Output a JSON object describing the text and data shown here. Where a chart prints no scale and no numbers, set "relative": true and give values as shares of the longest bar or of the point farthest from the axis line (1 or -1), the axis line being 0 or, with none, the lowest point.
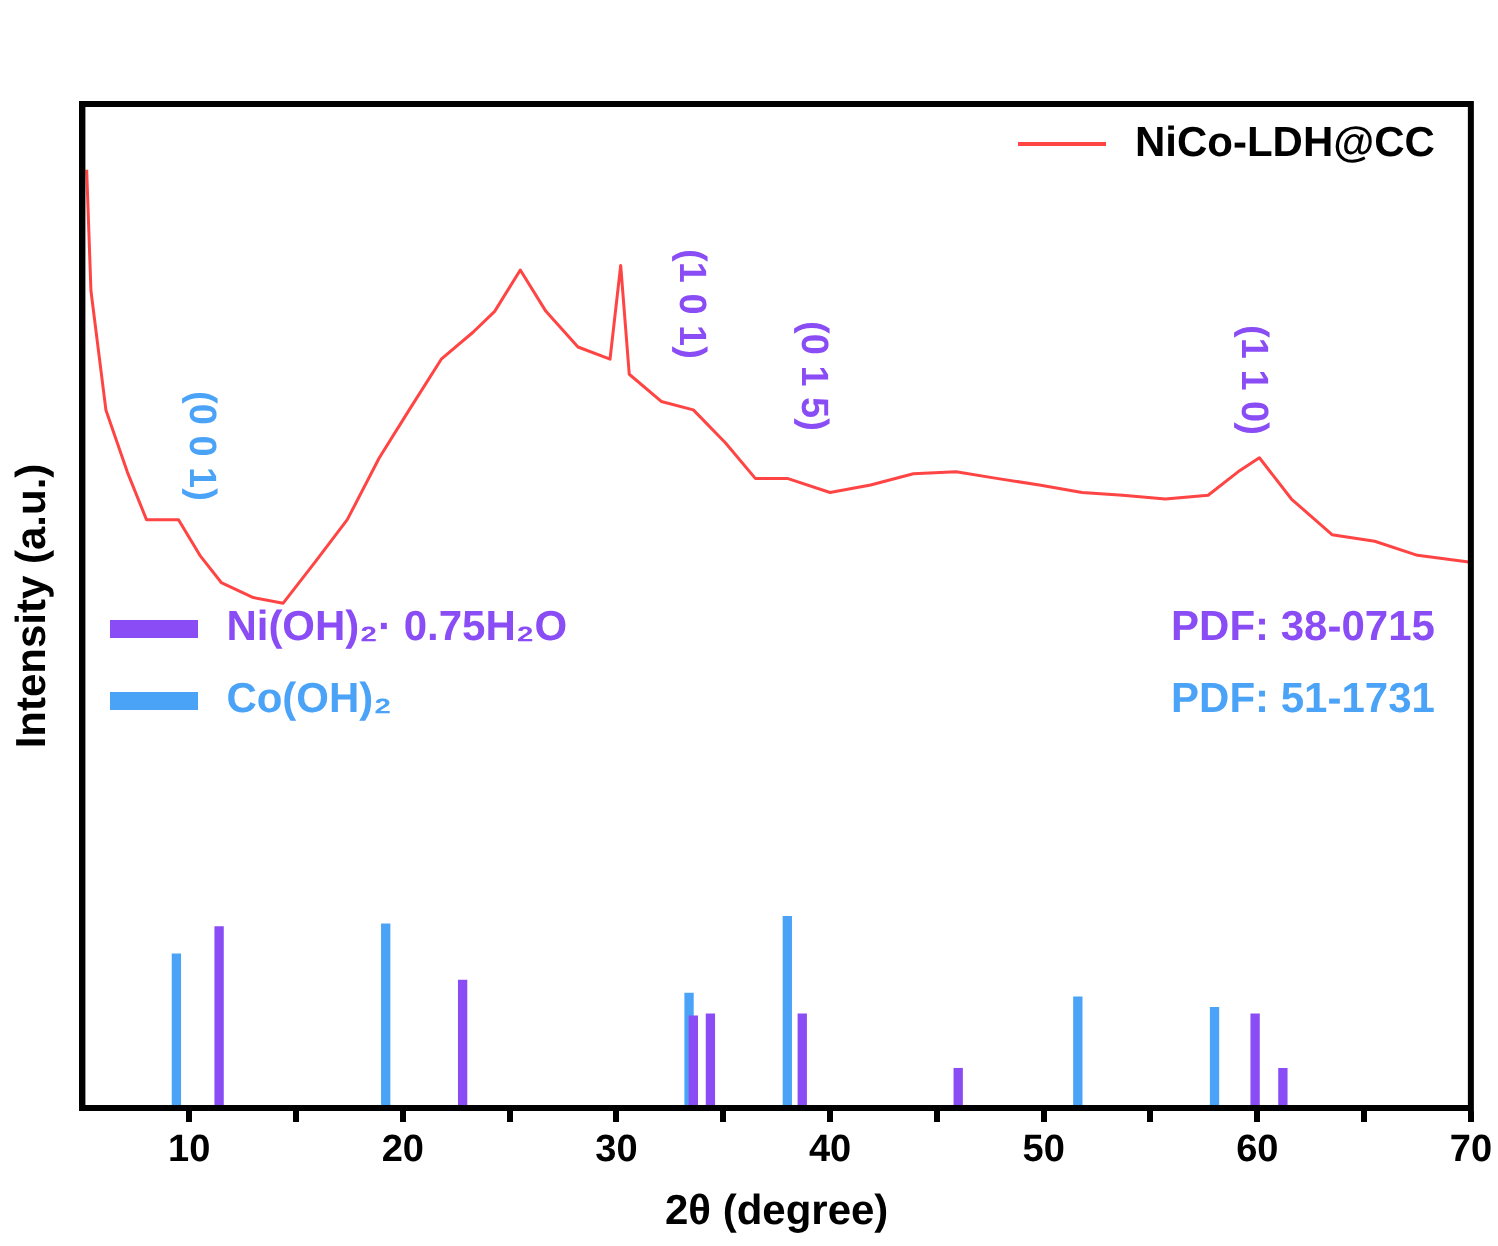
{
  "chart_data": {
    "type": "line",
    "xlabel": "2θ (degree)",
    "ylabel": "Intensity (a.u.)",
    "relative": true,
    "xlim": [
      5,
      70
    ],
    "xticks": [
      10,
      {
        "value": 15,
        "label": null
      },
      20,
      {
        "value": 25,
        "label": null
      },
      30,
      {
        "value": 35,
        "label": null
      },
      40,
      {
        "value": 45,
        "label": null
      },
      50,
      {
        "value": 55,
        "label": null
      },
      60,
      {
        "value": 65,
        "label": null
      },
      70
    ],
    "legend": "top right",
    "grid": false,
    "marker": "none",
    "line_style": "solid",
    "series": [
      {
        "name": "NiCo-LDH@CC",
        "color": "#ff4444",
        "x": [
          5.2,
          5.4,
          6.1,
          7.1,
          8,
          9.5,
          10.5,
          11.5,
          13,
          14.4,
          15.9,
          17.4,
          18.9,
          20.3,
          21.8,
          23.3,
          24.3,
          25.5,
          26.7,
          28.2,
          29.7,
          30.2,
          30.6,
          32.1,
          33.6,
          35.1,
          36.5,
          38,
          40,
          41.9,
          43.9,
          45.9,
          47.8,
          49.8,
          51.8,
          53.7,
          55.7,
          57.7,
          59.1,
          60.1,
          61.6,
          63.5,
          65.5,
          67.5,
          69.9
        ],
        "values": [
          1,
          0.871,
          0.744,
          0.678,
          0.627,
          0.627,
          0.589,
          0.56,
          0.544,
          0.538,
          0.582,
          0.627,
          0.693,
          0.744,
          0.798,
          0.827,
          0.849,
          0.893,
          0.849,
          0.811,
          0.798,
          0.898,
          0.782,
          0.753,
          0.744,
          0.709,
          0.671,
          0.671,
          0.656,
          0.664,
          0.676,
          0.678,
          0.671,
          0.664,
          0.656,
          0.653,
          0.649,
          0.653,
          0.678,
          0.693,
          0.649,
          0.611,
          0.604,
          0.589,
          0.582
        ]
      },
      {
        "name": "Ni(OH)₂· 0.75H₂O",
        "type": "bar",
        "color": "#8a4cf5",
        "x": [
          11.4,
          22.8,
          33.6,
          34.4,
          38.7,
          46,
          59.9,
          61.2
        ],
        "values": [
          0.193,
          0.136,
          0.098,
          0.1,
          0.1,
          0.042,
          0.1,
          0.042
        ]
      },
      {
        "name": "Co(OH)₂",
        "type": "bar",
        "color": "#4ba3f8",
        "x": [
          9.4,
          19.2,
          33.4,
          38,
          51.6,
          58
        ],
        "values": [
          0.164,
          0.196,
          0.122,
          0.204,
          0.118,
          0.107
        ]
      }
    ],
    "annotations": [
      "PDF: 38-0715",
      "PDF: 51-1731",
      "(0 0 1)",
      "(1 0 1)",
      "(0 1 5)",
      "(1 1 0)"
    ]
  }
}
